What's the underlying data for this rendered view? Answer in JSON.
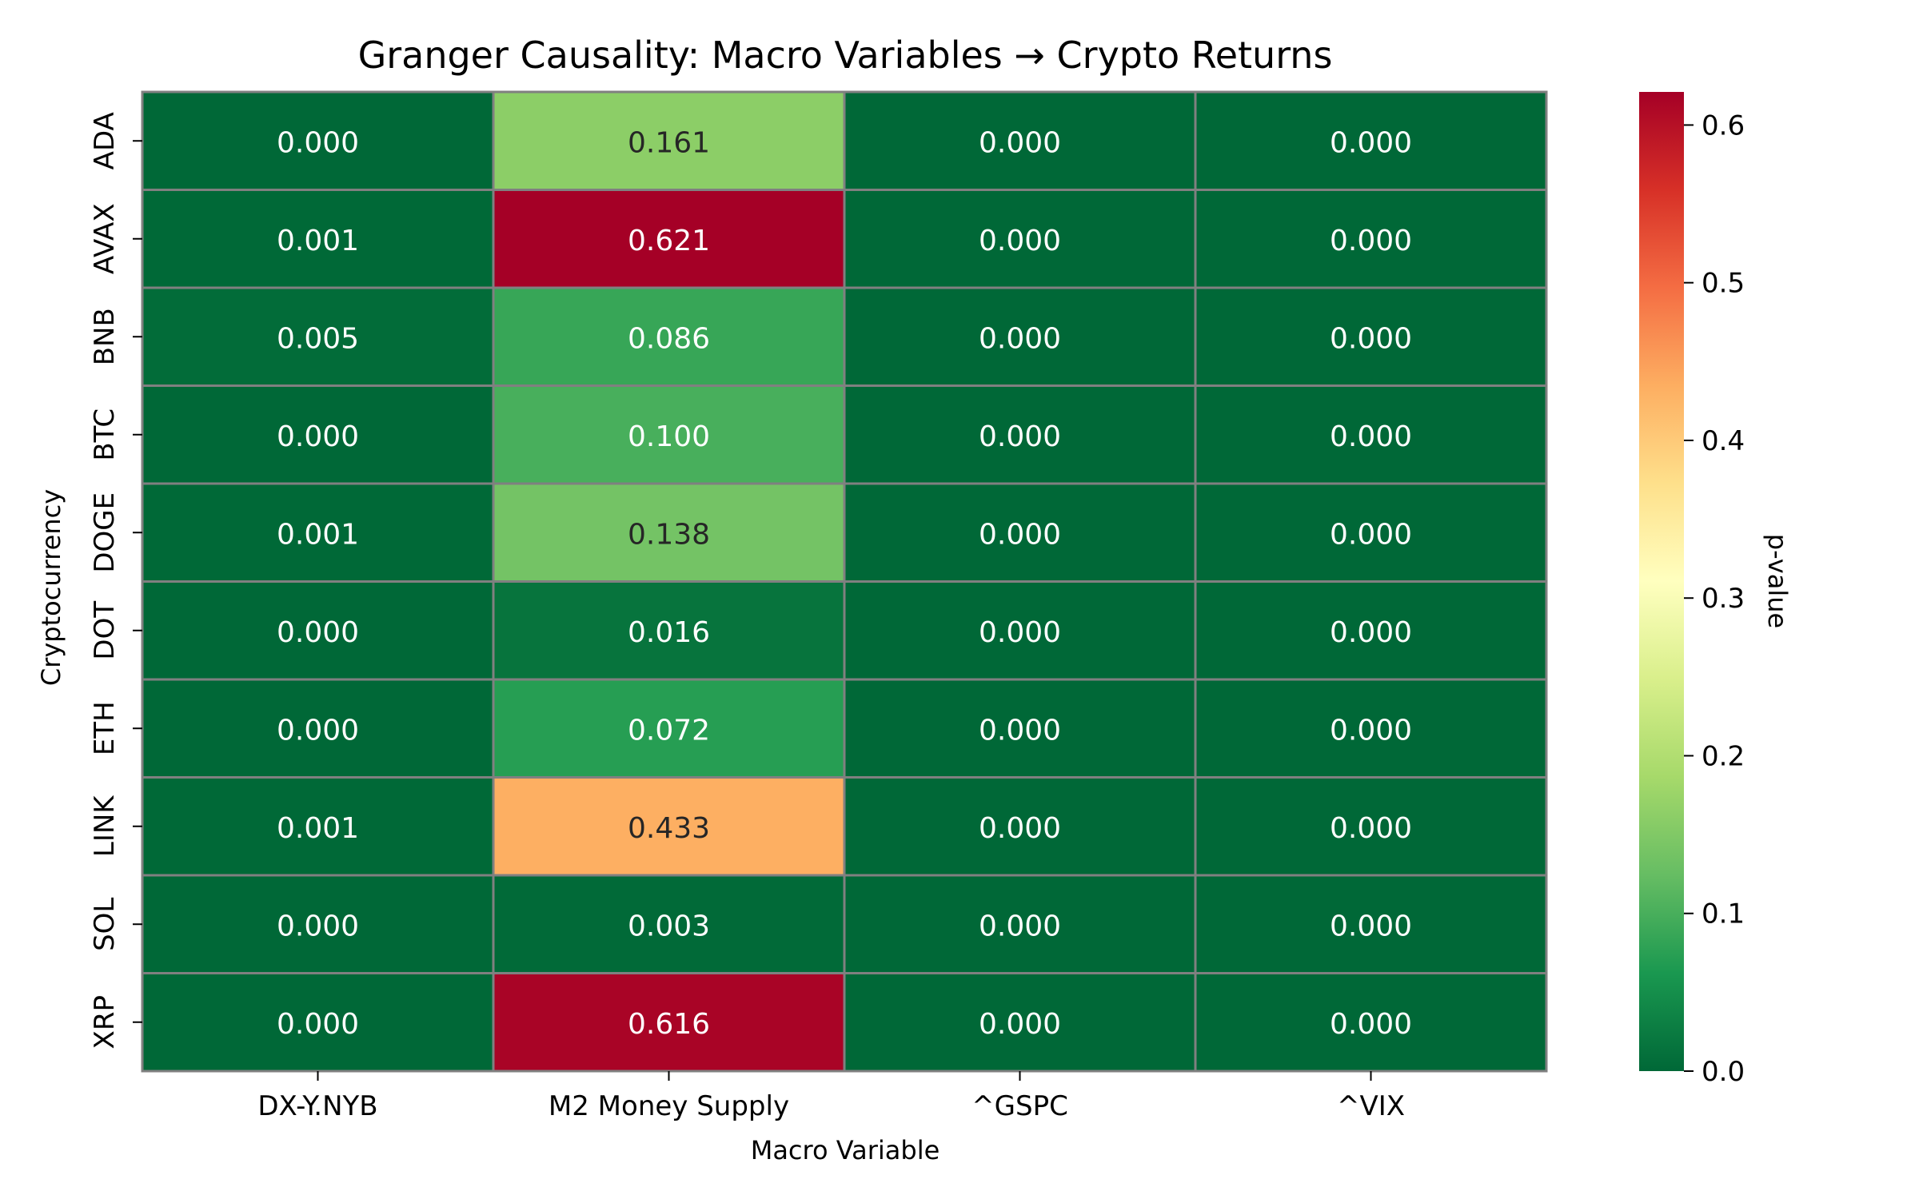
{
  "chart_data": {
    "type": "heatmap",
    "title": "Granger Causality: Macro Variables → Crypto Returns",
    "xlabel": "Macro Variable",
    "ylabel": "Cryptocurrency",
    "x_categories": [
      "DX-Y.NYB",
      "M2 Money Supply",
      "^GSPC",
      "^VIX"
    ],
    "y_categories": [
      "ADA",
      "AVAX",
      "BNB",
      "BTC",
      "DOGE",
      "DOT",
      "ETH",
      "LINK",
      "SOL",
      "XRP"
    ],
    "values": [
      [
        0.0,
        0.161,
        0.0,
        0.0
      ],
      [
        0.001,
        0.621,
        0.0,
        0.0
      ],
      [
        0.005,
        0.086,
        0.0,
        0.0
      ],
      [
        0.0,
        0.1,
        0.0,
        0.0
      ],
      [
        0.001,
        0.138,
        0.0,
        0.0
      ],
      [
        0.0,
        0.016,
        0.0,
        0.0
      ],
      [
        0.0,
        0.072,
        0.0,
        0.0
      ],
      [
        0.001,
        0.433,
        0.0,
        0.0
      ],
      [
        0.0,
        0.003,
        0.0,
        0.0
      ],
      [
        0.0,
        0.616,
        0.0,
        0.0
      ]
    ],
    "value_format": "0.000",
    "colormap": "RdYlGn_r",
    "colorbar": {
      "label": "p-value",
      "range": [
        0.0,
        0.621
      ],
      "ticks": [
        "0.0",
        "0.1",
        "0.2",
        "0.3",
        "0.4",
        "0.5",
        "0.6"
      ]
    },
    "cell_border_color": "#808080",
    "legend": "none",
    "grid": false
  }
}
